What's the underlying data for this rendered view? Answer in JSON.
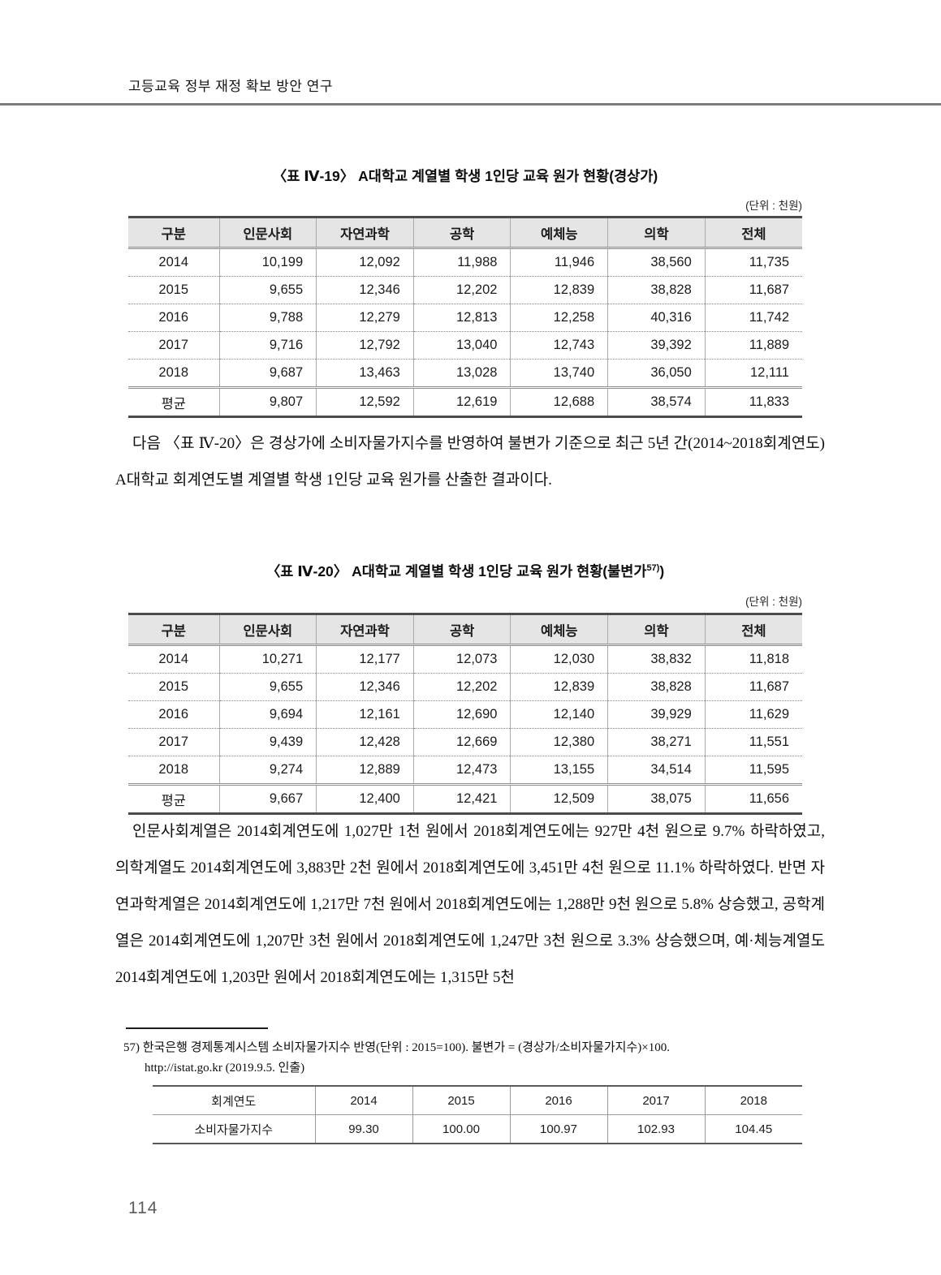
{
  "header": {
    "title": "고등교육 정부 재정 확보 방안 연구"
  },
  "table1": {
    "title": "〈표 Ⅳ-19〉 A대학교 계열별 학생 1인당 교육 원가 현황(경상가)",
    "unit": "(단위 : 천원)",
    "columns": [
      "구분",
      "인문사회",
      "자연과학",
      "공학",
      "예체능",
      "의학",
      "전체"
    ],
    "rows": [
      [
        "2014",
        "10,199",
        "12,092",
        "11,988",
        "11,946",
        "38,560",
        "11,735"
      ],
      [
        "2015",
        "9,655",
        "12,346",
        "12,202",
        "12,839",
        "38,828",
        "11,687"
      ],
      [
        "2016",
        "9,788",
        "12,279",
        "12,813",
        "12,258",
        "40,316",
        "11,742"
      ],
      [
        "2017",
        "9,716",
        "12,792",
        "13,040",
        "12,743",
        "39,392",
        "11,889"
      ],
      [
        "2018",
        "9,687",
        "13,463",
        "13,028",
        "13,740",
        "36,050",
        "12,111"
      ],
      [
        "평균",
        "9,807",
        "12,592",
        "12,619",
        "12,688",
        "38,574",
        "11,833"
      ]
    ]
  },
  "paragraph1": "다음 〈표 Ⅳ-20〉은 경상가에 소비자물가지수를 반영하여 불변가 기준으로 최근 5년 간(2014~2018회계연도) A대학교 회계연도별 계열별 학생 1인당 교육 원가를 산출한 결과이다.",
  "table2": {
    "title_main": "〈표 Ⅳ-20〉 A대학교 계열별 학생 1인당 교육 원가 현황(불변가",
    "title_sup": "57)",
    "title_close": ")",
    "unit": "(단위 : 천원)",
    "columns": [
      "구분",
      "인문사회",
      "자연과학",
      "공학",
      "예체능",
      "의학",
      "전체"
    ],
    "rows": [
      [
        "2014",
        "10,271",
        "12,177",
        "12,073",
        "12,030",
        "38,832",
        "11,818"
      ],
      [
        "2015",
        "9,655",
        "12,346",
        "12,202",
        "12,839",
        "38,828",
        "11,687"
      ],
      [
        "2016",
        "9,694",
        "12,161",
        "12,690",
        "12,140",
        "39,929",
        "11,629"
      ],
      [
        "2017",
        "9,439",
        "12,428",
        "12,669",
        "12,380",
        "38,271",
        "11,551"
      ],
      [
        "2018",
        "9,274",
        "12,889",
        "12,473",
        "13,155",
        "34,514",
        "11,595"
      ],
      [
        "평균",
        "9,667",
        "12,400",
        "12,421",
        "12,509",
        "38,075",
        "11,656"
      ]
    ]
  },
  "paragraph2": "인문사회계열은 2014회계연도에 1,027만 1천 원에서 2018회계연도에는 927만 4천 원으로 9.7% 하락하였고, 의학계열도 2014회계연도에 3,883만 2천 원에서 2018회계연도에 3,451만 4천 원으로 11.1% 하락하였다. 반면 자연과학계열은 2014회계연도에 1,217만 7천 원에서 2018회계연도에는 1,288만 9천 원으로 5.8% 상승했고, 공학계열은 2014회계연도에 1,207만 3천 원에서 2018회계연도에 1,247만 3천 원으로 3.3% 상승했으며, 예·체능계열도 2014회계연도에 1,203만 원에서 2018회계연도에는 1,315만 5천",
  "footnote": {
    "marker": "57)",
    "line1": "한국은행 경제통계시스템 소비자물가지수 반영(단위 : 2015=100). 불변가 = (경상가/소비자물가지수)×100.",
    "line2": "http://istat.go.kr (2019.9.5. 인출)",
    "table_rows": [
      [
        "회계연도",
        "2014",
        "2015",
        "2016",
        "2017",
        "2018"
      ],
      [
        "소비자물가지수",
        "99.30",
        "100.00",
        "100.97",
        "102.93",
        "104.45"
      ]
    ]
  },
  "page_number": "114"
}
